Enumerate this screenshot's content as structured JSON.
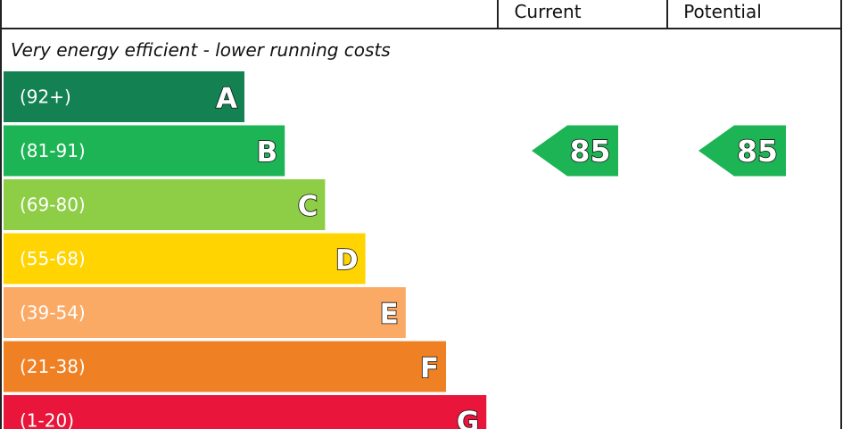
{
  "header": {
    "current_label": "Current",
    "potential_label": "Potential"
  },
  "caption_top": "Very energy efficient - lower running costs",
  "chart_data": {
    "type": "bar",
    "categories": [
      "A",
      "B",
      "C",
      "D",
      "E",
      "F",
      "G"
    ],
    "ranges": [
      "(92+)",
      "(81-91)",
      "(69-80)",
      "(55-68)",
      "(39-54)",
      "(21-38)",
      "(1-20)"
    ],
    "colors": [
      "#138152",
      "#1DB456",
      "#8DCE46",
      "#FFD400",
      "#FBAA65",
      "#EF8023",
      "#E9153B"
    ],
    "current": {
      "value": 85,
      "band": "B",
      "color": "#1DB456"
    },
    "potential": {
      "value": 85,
      "band": "B",
      "color": "#1DB456"
    }
  }
}
